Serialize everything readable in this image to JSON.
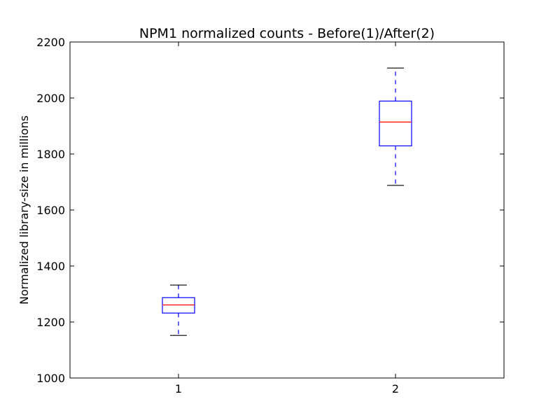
{
  "chart_data": {
    "type": "box",
    "title": "NPM1 normalized counts - Before(1)/After(2)",
    "xlabel": "",
    "ylabel": "Normalized library-size in millions",
    "ylim": [
      1000,
      2200
    ],
    "yticks": [
      1000,
      1200,
      1400,
      1600,
      1800,
      2000,
      2200
    ],
    "categories": [
      "1",
      "2"
    ],
    "boxes": [
      {
        "category": "1",
        "whisker_low": 1152,
        "q1": 1232,
        "median": 1261,
        "q3": 1287,
        "whisker_high": 1332
      },
      {
        "category": "2",
        "whisker_low": 1688,
        "q1": 1829,
        "median": 1914,
        "q3": 1989,
        "whisker_high": 2107
      }
    ],
    "grid": false,
    "colors": {
      "box": "#0000ff",
      "median": "#ff0000",
      "cap": "#000000",
      "axis": "#000000"
    }
  }
}
